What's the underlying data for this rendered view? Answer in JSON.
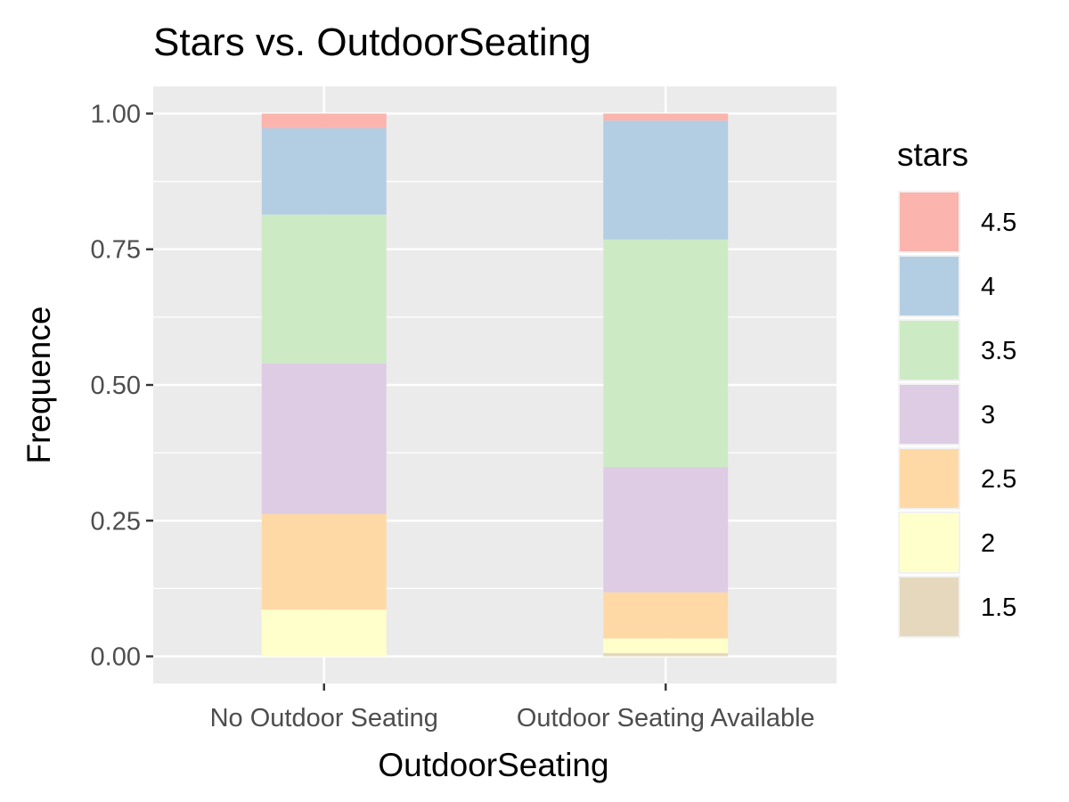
{
  "chart_data": {
    "type": "bar",
    "stacked": true,
    "title": "Stars vs. OutdoorSeating",
    "xlabel": "OutdoorSeating",
    "ylabel": "Frequence",
    "ylim": [
      -0.05,
      1.05
    ],
    "y_ticks": [
      0.0,
      0.25,
      0.5,
      0.75,
      1.0
    ],
    "y_tick_labels": [
      "0.00",
      "0.25",
      "0.50",
      "0.75",
      "1.00"
    ],
    "categories": [
      "No Outdoor Seating",
      "Outdoor Seating Available"
    ],
    "legend_title": "stars",
    "legend_position": "right",
    "series": [
      {
        "name": "1.5",
        "color": "#E5D8BD",
        "values": [
          0.0,
          0.006
        ]
      },
      {
        "name": "2",
        "color": "#FFFFCC",
        "values": [
          0.086,
          0.027
        ]
      },
      {
        "name": "2.5",
        "color": "#FED9A6",
        "values": [
          0.176,
          0.085
        ]
      },
      {
        "name": "3",
        "color": "#DECBE4",
        "values": [
          0.278,
          0.231
        ]
      },
      {
        "name": "3.5",
        "color": "#CCEBC5",
        "values": [
          0.274,
          0.419
        ]
      },
      {
        "name": "4",
        "color": "#B3CDE3",
        "values": [
          0.159,
          0.219
        ]
      },
      {
        "name": "4.5",
        "color": "#FBB4AE",
        "values": [
          0.027,
          0.013
        ]
      }
    ]
  }
}
